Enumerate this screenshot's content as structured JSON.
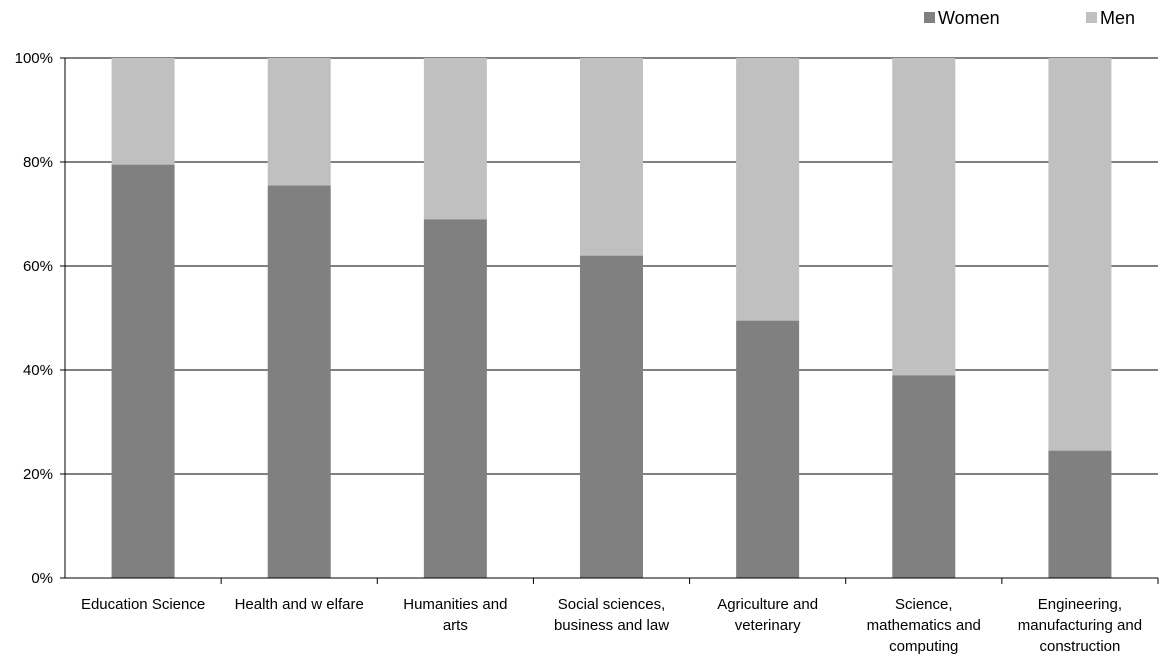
{
  "chart_data": {
    "type": "bar",
    "stacked": true,
    "percent": true,
    "categories": [
      [
        "Education Science"
      ],
      [
        "Health and w elfare"
      ],
      [
        "Humanities and",
        "arts"
      ],
      [
        "Social sciences,",
        "business and law"
      ],
      [
        "Agriculture and",
        "veterinary"
      ],
      [
        "Science,",
        "mathematics and",
        "computing"
      ],
      [
        "Engineering,",
        "manufacturing and",
        "construction"
      ]
    ],
    "series": [
      {
        "name": "Women",
        "color": "#808080",
        "values": [
          79.5,
          75.5,
          69,
          62,
          49.5,
          39,
          24.5
        ]
      },
      {
        "name": "Men",
        "color": "#c0c0c0",
        "values": [
          20.5,
          24.5,
          31,
          38,
          50.5,
          61,
          75.5
        ]
      }
    ],
    "ylim": [
      0,
      100
    ],
    "yticks": [
      "0%",
      "20%",
      "40%",
      "60%",
      "80%",
      "100%"
    ],
    "grid": true,
    "legend": "top-right",
    "title": "",
    "xlabel": "",
    "ylabel": ""
  }
}
